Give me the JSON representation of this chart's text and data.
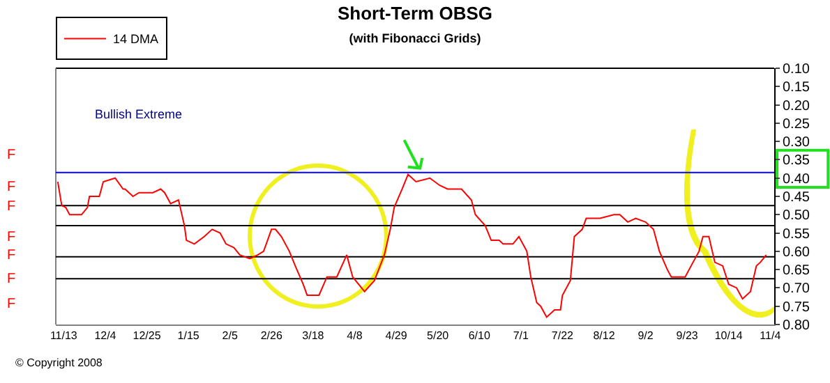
{
  "chart_data": {
    "type": "line",
    "title": "Short-Term OBSG",
    "subtitle": "(with Fibonacci Grids)",
    "x": [
      "2007-11-10",
      "2007-11-12",
      "2007-11-14",
      "2007-11-16",
      "2007-11-19",
      "2007-11-22",
      "2007-11-25",
      "2007-11-26",
      "2007-12-01",
      "2007-12-03",
      "2007-12-09",
      "2007-12-13",
      "2007-12-14",
      "2007-12-18",
      "2007-12-21",
      "2007-12-28",
      "2008-01-01",
      "2008-01-03",
      "2008-01-06",
      "2008-01-10",
      "2008-01-13",
      "2008-01-14",
      "2008-01-18",
      "2008-01-23",
      "2008-01-27",
      "2008-01-31",
      "2008-02-03",
      "2008-02-07",
      "2008-02-10",
      "2008-02-15",
      "2008-02-19",
      "2008-02-22",
      "2008-02-26",
      "2008-02-28",
      "2008-03-02",
      "2008-03-06",
      "2008-03-09",
      "2008-03-13",
      "2008-03-15",
      "2008-03-21",
      "2008-03-25",
      "2008-03-30",
      "2008-04-04",
      "2008-04-07",
      "2008-04-13",
      "2008-04-18",
      "2008-04-23",
      "2008-04-26",
      "2008-04-28",
      "2008-05-02",
      "2008-05-05",
      "2008-05-09",
      "2008-05-16",
      "2008-05-21",
      "2008-05-25",
      "2008-06-01",
      "2008-06-06",
      "2008-06-08",
      "2008-06-13",
      "2008-06-16",
      "2008-06-20",
      "2008-06-22",
      "2008-06-27",
      "2008-06-30",
      "2008-07-04",
      "2008-07-06",
      "2008-07-09",
      "2008-07-11",
      "2008-07-14",
      "2008-07-18",
      "2008-07-21",
      "2008-07-22",
      "2008-07-26",
      "2008-07-28",
      "2008-08-01",
      "2008-08-03",
      "2008-08-10",
      "2008-08-17",
      "2008-08-20",
      "2008-08-24",
      "2008-08-28",
      "2008-09-02",
      "2008-09-06",
      "2008-09-09",
      "2008-09-13",
      "2008-09-15",
      "2008-09-18",
      "2008-09-22",
      "2008-09-25",
      "2008-09-29",
      "2008-10-01",
      "2008-10-04",
      "2008-10-07",
      "2008-10-11",
      "2008-10-14",
      "2008-10-18",
      "2008-10-21",
      "2008-10-25",
      "2008-10-28",
      "2008-10-30",
      "2008-11-02"
    ],
    "series": [
      {
        "name": "14 DMA",
        "color": "#ff0000",
        "values": [
          0.41,
          0.475,
          0.48,
          0.5,
          0.5,
          0.5,
          0.48,
          0.45,
          0.45,
          0.41,
          0.4,
          0.43,
          0.43,
          0.45,
          0.44,
          0.44,
          0.43,
          0.44,
          0.47,
          0.46,
          0.53,
          0.57,
          0.58,
          0.56,
          0.54,
          0.55,
          0.58,
          0.59,
          0.61,
          0.62,
          0.61,
          0.6,
          0.54,
          0.54,
          0.56,
          0.6,
          0.64,
          0.69,
          0.72,
          0.72,
          0.67,
          0.67,
          0.61,
          0.67,
          0.71,
          0.68,
          0.61,
          0.54,
          0.48,
          0.43,
          0.39,
          0.41,
          0.4,
          0.42,
          0.43,
          0.43,
          0.46,
          0.5,
          0.53,
          0.57,
          0.57,
          0.58,
          0.58,
          0.56,
          0.6,
          0.67,
          0.74,
          0.75,
          0.78,
          0.76,
          0.76,
          0.72,
          0.68,
          0.56,
          0.54,
          0.51,
          0.51,
          0.5,
          0.5,
          0.52,
          0.51,
          0.52,
          0.54,
          0.6,
          0.65,
          0.67,
          0.67,
          0.67,
          0.64,
          0.6,
          0.56,
          0.56,
          0.63,
          0.64,
          0.69,
          0.7,
          0.73,
          0.71,
          0.64,
          0.63,
          0.61
        ]
      }
    ],
    "xlim": [
      "2007-11-09",
      "2008-11-06"
    ],
    "xticks": [
      {
        "value": "2007-11-13",
        "label": "11/13"
      },
      {
        "value": "2007-12-04",
        "label": "12/4"
      },
      {
        "value": "2007-12-25",
        "label": "12/25"
      },
      {
        "value": "2008-01-15",
        "label": "1/15"
      },
      {
        "value": "2008-02-05",
        "label": "2/5"
      },
      {
        "value": "2008-02-26",
        "label": "2/26"
      },
      {
        "value": "2008-03-18",
        "label": "3/18"
      },
      {
        "value": "2008-04-08",
        "label": "4/8"
      },
      {
        "value": "2008-04-29",
        "label": "4/29"
      },
      {
        "value": "2008-05-20",
        "label": "5/20"
      },
      {
        "value": "2008-06-10",
        "label": "6/10"
      },
      {
        "value": "2008-07-01",
        "label": "7/1"
      },
      {
        "value": "2008-07-22",
        "label": "7/22"
      },
      {
        "value": "2008-08-12",
        "label": "8/12"
      },
      {
        "value": "2008-09-02",
        "label": "9/2"
      },
      {
        "value": "2008-09-23",
        "label": "9/23"
      },
      {
        "value": "2008-10-14",
        "label": "10/14"
      },
      {
        "value": "2008-11-04",
        "label": "11/4"
      }
    ],
    "ylim": [
      0.8,
      0.1
    ],
    "yticks": [
      {
        "value": 0.1,
        "label": "0.10"
      },
      {
        "value": 0.15,
        "label": "0.15"
      },
      {
        "value": 0.2,
        "label": "0.20"
      },
      {
        "value": 0.25,
        "label": "0.25"
      },
      {
        "value": 0.3,
        "label": "0.30"
      },
      {
        "value": 0.35,
        "label": "0.35"
      },
      {
        "value": 0.4,
        "label": "0.40"
      },
      {
        "value": 0.45,
        "label": "0.45"
      },
      {
        "value": 0.5,
        "label": "0.50"
      },
      {
        "value": 0.55,
        "label": "0.55"
      },
      {
        "value": 0.6,
        "label": "0.60"
      },
      {
        "value": 0.65,
        "label": "0.65"
      },
      {
        "value": 0.7,
        "label": "0.70"
      },
      {
        "value": 0.75,
        "label": "0.75"
      },
      {
        "value": 0.8,
        "label": "0.80"
      }
    ],
    "ref_lines": [
      {
        "axis": "y",
        "value": 0.385,
        "color": "#0000ff"
      },
      {
        "axis": "y",
        "value": 0.475,
        "color": "#000000"
      },
      {
        "axis": "y",
        "value": 0.53,
        "color": "#000000"
      },
      {
        "axis": "y",
        "value": 0.615,
        "color": "#000000"
      },
      {
        "axis": "y",
        "value": 0.675,
        "color": "#000000"
      }
    ],
    "annotations": [
      "Bullish Extreme",
      "F",
      "F",
      "F",
      "F",
      "F",
      "F",
      "F",
      "© Copyright 2008"
    ],
    "legend": "top left",
    "grid": false,
    "marker": "none",
    "line_style": "solid"
  }
}
